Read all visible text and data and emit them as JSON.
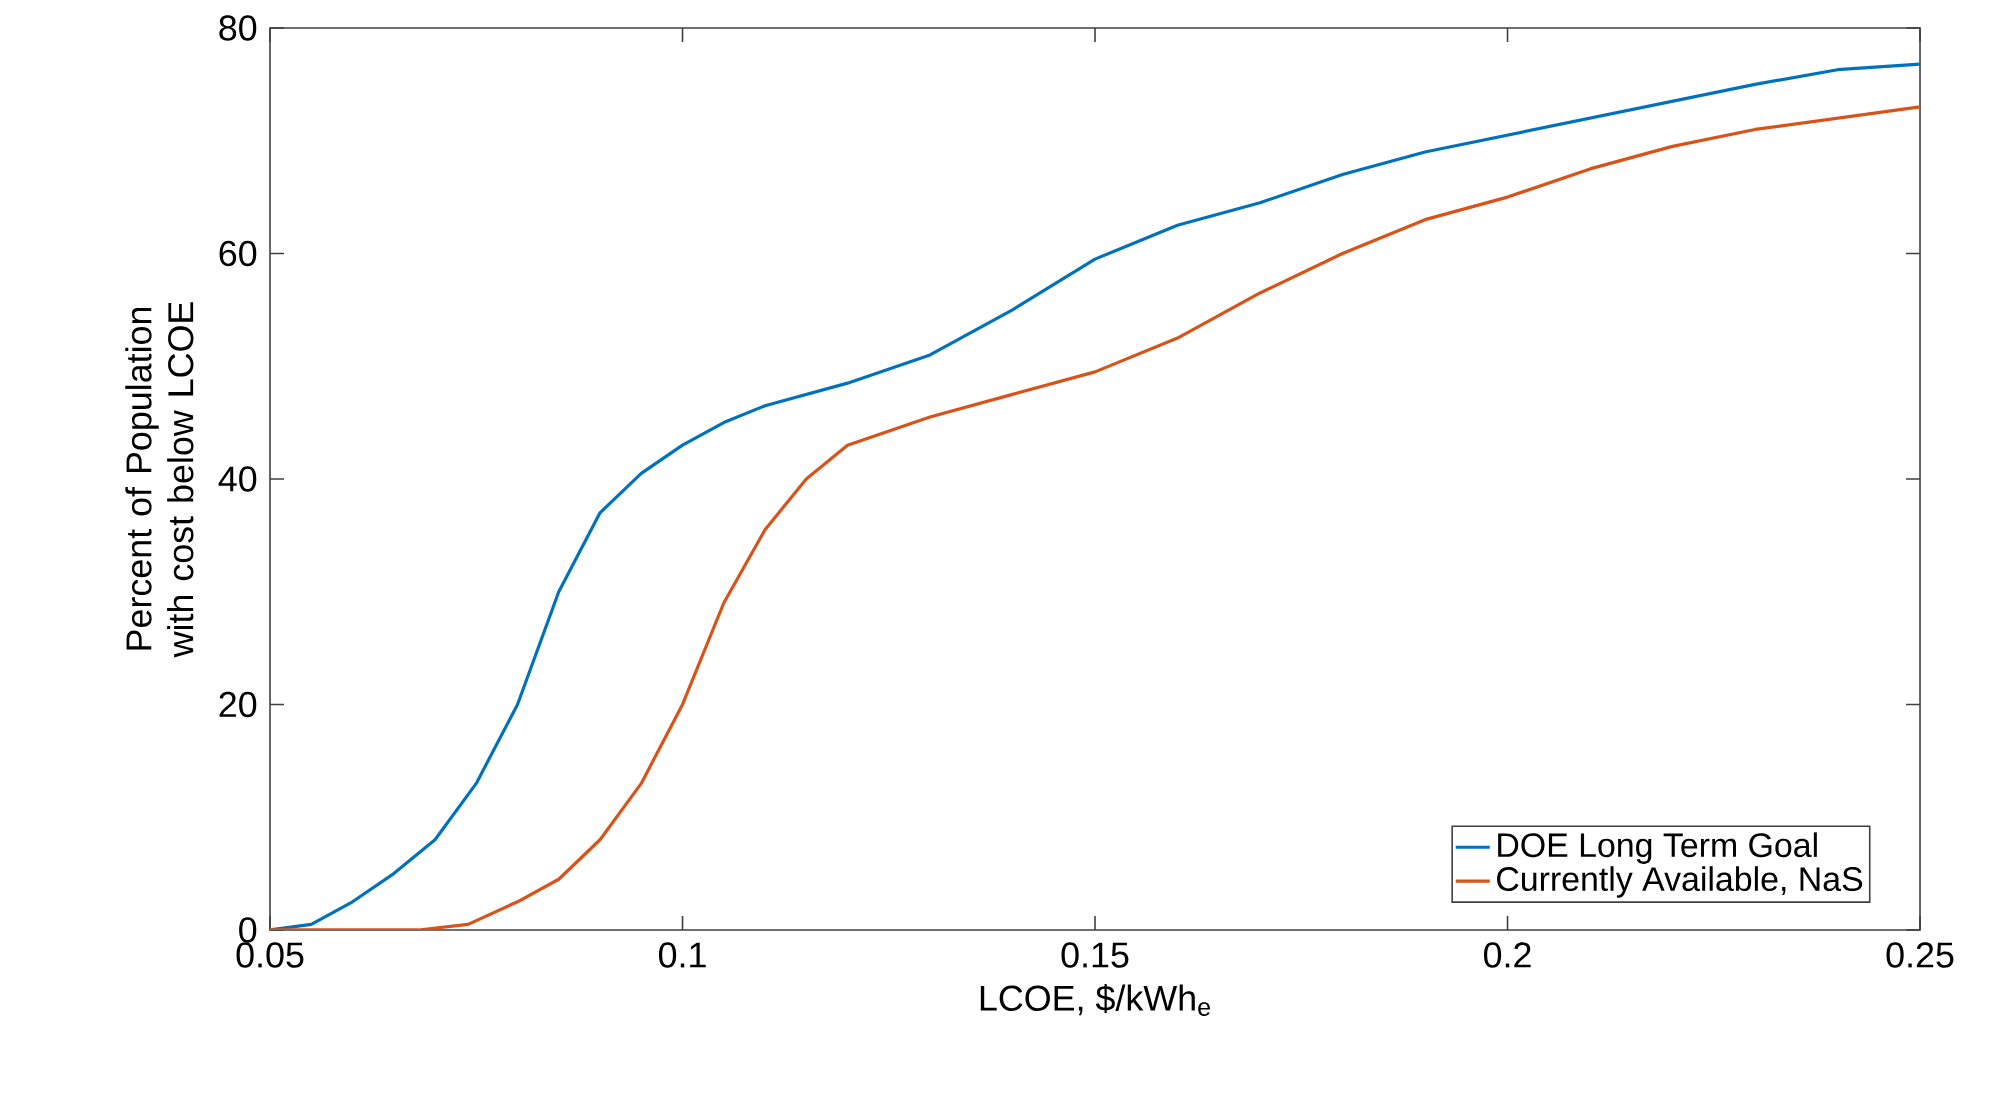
{
  "chart_data": {
    "type": "line",
    "xlabel": "LCOE, $/kWh$_{e}$",
    "ylabel": "Percent of Population with cost below LCOE",
    "xlim": [
      0.05,
      0.25
    ],
    "ylim": [
      0,
      80
    ],
    "xticks": [
      0.05,
      0.1,
      0.15,
      0.2,
      0.25
    ],
    "yticks": [
      0,
      20,
      40,
      60,
      80
    ],
    "grid": false,
    "legend": "bottom right",
    "line_style": "solid",
    "series": [
      {
        "name": "DOE Long Term Goal",
        "color": "#0072bd",
        "x": [
          0.05,
          0.055,
          0.06,
          0.065,
          0.07,
          0.075,
          0.08,
          0.085,
          0.09,
          0.095,
          0.1,
          0.105,
          0.11,
          0.12,
          0.13,
          0.14,
          0.15,
          0.16,
          0.17,
          0.18,
          0.19,
          0.2,
          0.21,
          0.22,
          0.23,
          0.24,
          0.25
        ],
        "values": [
          0,
          0.5,
          2.5,
          5,
          8,
          13,
          20,
          30,
          37,
          40.5,
          43,
          45,
          46.5,
          48.5,
          51,
          55,
          59.5,
          62.5,
          64.5,
          67,
          69,
          70.5,
          72,
          73.5,
          75,
          76.3,
          76.8
        ]
      },
      {
        "name": "Currently Available, NaS",
        "color": "#d95319",
        "x": [
          0.05,
          0.068,
          0.074,
          0.08,
          0.085,
          0.09,
          0.095,
          0.1,
          0.105,
          0.11,
          0.115,
          0.12,
          0.13,
          0.14,
          0.15,
          0.16,
          0.17,
          0.18,
          0.19,
          0.2,
          0.21,
          0.22,
          0.23,
          0.24,
          0.25
        ],
        "values": [
          0,
          0,
          0.5,
          2.5,
          4.5,
          8,
          13,
          20,
          29,
          35.5,
          40,
          43,
          45.5,
          47.5,
          49.5,
          52.5,
          56.5,
          60,
          63,
          65,
          67.5,
          69.5,
          71,
          72,
          73
        ]
      }
    ]
  }
}
